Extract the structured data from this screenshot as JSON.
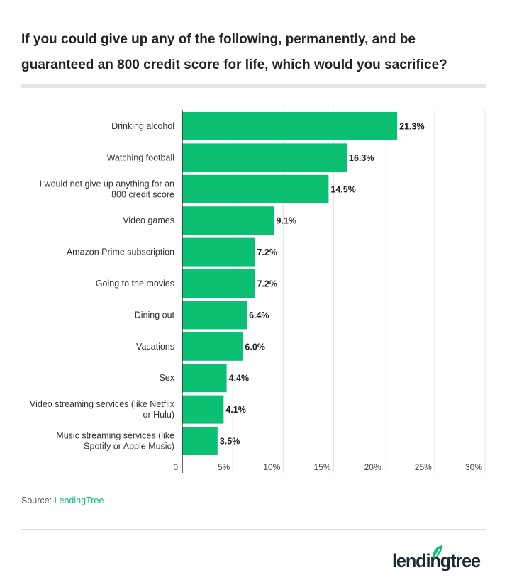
{
  "chart_data": {
    "type": "bar",
    "orientation": "horizontal",
    "title": "If you could give up any of the following, permanently, and be guaranteed an 800 credit score for life, which would you sacrifice?",
    "categories": [
      "Drinking alcohol",
      "Watching football",
      "I would not give up anything for an 800 credit score",
      "Video games",
      "Amazon Prime subscription",
      "Going to the movies",
      "Dining out",
      "Vacations",
      "Sex",
      "Video streaming services (like Netflix or Hulu)",
      "Music streaming services (like Spotify or Apple Music)"
    ],
    "category_lines": [
      [
        "Drinking alcohol"
      ],
      [
        "Watching football"
      ],
      [
        "I would not give up anything for an",
        "800 credit score"
      ],
      [
        "Video games"
      ],
      [
        "Amazon Prime subscription"
      ],
      [
        "Going to the movies"
      ],
      [
        "Dining out"
      ],
      [
        "Vacations"
      ],
      [
        "Sex"
      ],
      [
        "Video streaming services (like Netflix",
        "or Hulu)"
      ],
      [
        "Music streaming services (like",
        "Spotify or Apple Music)"
      ]
    ],
    "values": [
      21.3,
      16.3,
      14.5,
      9.1,
      7.2,
      7.2,
      6.4,
      6.0,
      4.4,
      4.1,
      3.5
    ],
    "data_labels": [
      "21.3%",
      "16.3%",
      "14.5%",
      "9.1%",
      "7.2%",
      "7.2%",
      "6.4%",
      "6.0%",
      "4.4%",
      "4.1%",
      "3.5%"
    ],
    "xlim": [
      0,
      30
    ],
    "xticks": [
      0,
      5,
      10,
      15,
      20,
      25,
      30
    ],
    "xtick_labels": [
      "0",
      "5%",
      "10%",
      "15%",
      "20%",
      "25%",
      "30%"
    ],
    "grid": true,
    "bar_color": "#0cc073"
  },
  "source": {
    "label": "Source:",
    "name": "LendingTree"
  },
  "logo": {
    "text": "lendingtree"
  }
}
